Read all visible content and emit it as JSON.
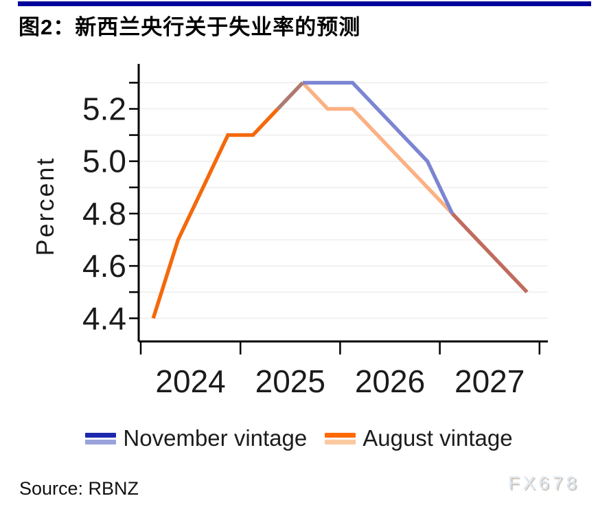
{
  "page": {
    "title": "图2：新西兰央行关于失业率的预测",
    "source": "Source: RBNZ",
    "watermark": "FX678",
    "accent_bar_color": "#00009b"
  },
  "legend": {
    "items": [
      {
        "bar_top_color": "#1b28ae",
        "bar_bottom_color": "#99a3dc"
      },
      {
        "bar_top_color": "#ff6a05",
        "bar_bottom_color": "#fbc9a0"
      }
    ]
  },
  "chart_data": {
    "type": "line",
    "title": "图2：新西兰央行关于失业率的预测",
    "ylabel": "Percent",
    "xlabel": "",
    "x_year_tick_labels": [
      "2024",
      "2025",
      "2026",
      "2027"
    ],
    "x_categories": [
      "2024Q1",
      "2024Q2",
      "2024Q3",
      "2024Q4",
      "2025Q1",
      "2025Q2",
      "2025Q3",
      "2025Q4",
      "2026Q1",
      "2026Q2",
      "2026Q3",
      "2026Q4",
      "2027Q1",
      "2027Q2",
      "2027Q3",
      "2027Q4"
    ],
    "y_major_ticks": [
      5.2,
      5.0,
      4.8,
      4.6,
      4.4
    ],
    "y_major_tick_labels": [
      "5.2",
      "5.0",
      "4.8",
      "4.6",
      "4.4"
    ],
    "y_minor_ticks": [
      5.3,
      5.1,
      4.9,
      4.7,
      4.5
    ],
    "ylim": [
      4.35,
      5.38
    ],
    "grid": "horizontal",
    "gridline_color": "#ededed",
    "legend_position": "bottom",
    "series": [
      {
        "name": "November vintage",
        "values": [
          4.4,
          4.7,
          4.9,
          5.1,
          5.1,
          5.2,
          5.3,
          5.3,
          5.3,
          5.2,
          5.1,
          5.0,
          4.8,
          4.7,
          4.6,
          4.5
        ],
        "actual_through": "2025Q3",
        "color_actual": "#1b28ae",
        "color_forecast": "#7b85d2"
      },
      {
        "name": "August vintage",
        "values": [
          4.4,
          4.7,
          4.9,
          5.1,
          5.1,
          5.2,
          5.3,
          5.2,
          5.2,
          5.1,
          5.0,
          4.9,
          4.8,
          4.7,
          4.6,
          4.5
        ],
        "actual_through": "2025Q2",
        "color_actual": "#f4690c",
        "color_forecast": "#fbb183"
      }
    ],
    "history_end_index": 5,
    "peak_index": 6,
    "merge_index": 12,
    "overlap_colors": {
      "shared_rise": "#ac7a70",
      "merged_tail": "#c06b5e"
    }
  }
}
